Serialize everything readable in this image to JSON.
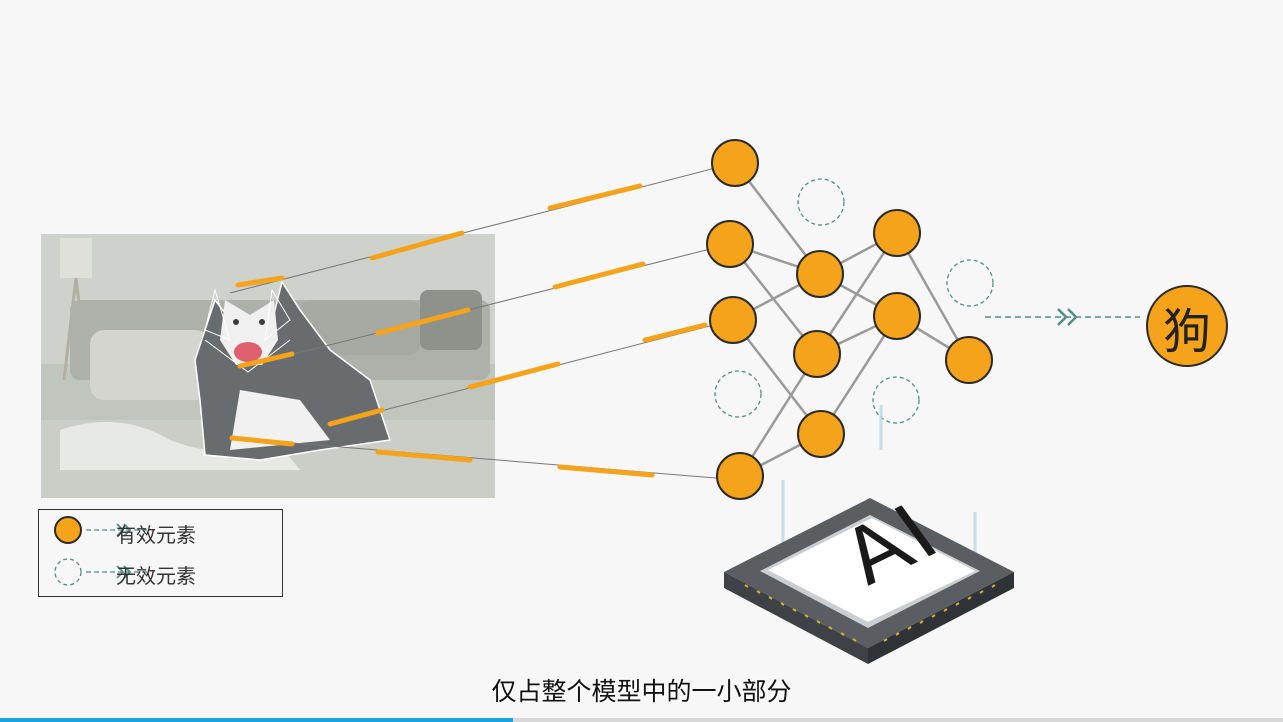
{
  "legend": {
    "valid_label": "有效元素",
    "invalid_label": "无效元素"
  },
  "result": {
    "label": "狗"
  },
  "chip": {
    "label": "AI"
  },
  "subtitle": {
    "text": "仅占整个模型中的一小部分"
  },
  "colors": {
    "node_fill": "#f5a31a",
    "node_stroke": "#2b2b2b",
    "invalid_node": "#4f8f86",
    "connector": "#f5a31a",
    "edge": "#9a9a9a",
    "progress": "#1aa3e0"
  },
  "icons": [
    "dog-photo",
    "ai-chip-icon",
    "double-chevron-icon"
  ],
  "video_progress": 0.4
}
